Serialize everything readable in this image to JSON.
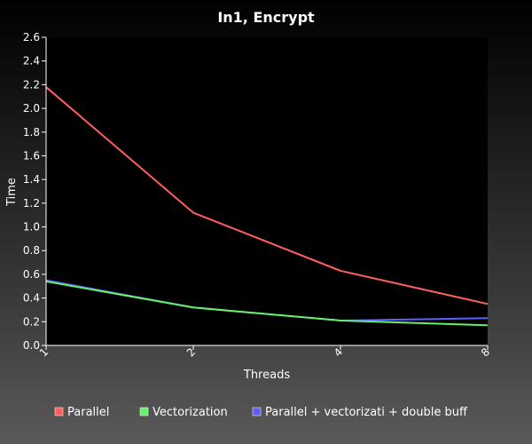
{
  "chart_data": {
    "type": "line",
    "title": "In1, Encrypt",
    "xlabel": "Threads",
    "ylabel": "Time",
    "categories": [
      "1",
      "2",
      "4",
      "8"
    ],
    "ylim": [
      0,
      2.6
    ],
    "yticks": [
      "0.0",
      "0.2",
      "0.4",
      "0.6",
      "0.8",
      "1.0",
      "1.2",
      "1.4",
      "1.6",
      "1.8",
      "2.0",
      "2.2",
      "2.4",
      "2.6"
    ],
    "grid": false,
    "legend_position": "bottom",
    "series": [
      {
        "name": "Parallel",
        "color": "#ff5f5f",
        "values": [
          2.18,
          1.12,
          0.63,
          0.35
        ]
      },
      {
        "name": "Parallel + vectorizati + double buff",
        "color": "#5f5fff",
        "values": [
          0.55,
          0.32,
          0.21,
          0.23
        ]
      },
      {
        "name": "Vectorization",
        "color": "#66f066",
        "values": [
          0.54,
          0.32,
          0.21,
          0.17
        ]
      }
    ],
    "legend_order": [
      "Parallel",
      "Vectorization",
      "Parallel + vectorizati + double buff"
    ]
  }
}
